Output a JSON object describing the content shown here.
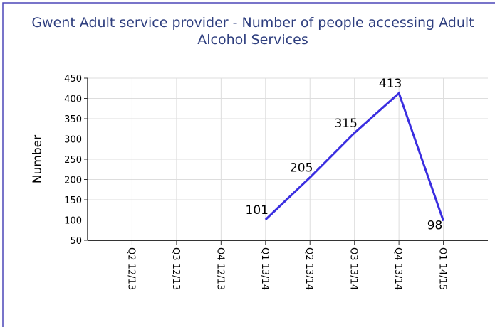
{
  "chart_data": {
    "type": "line",
    "title": "Gwent Adult service provider - Number of people accessing Adult Alcohol Services",
    "y_label": "Number",
    "categories": [
      "Q2 12/13",
      "Q3 12/13",
      "Q4 12/13",
      "Q1 13/14",
      "Q2 13/14",
      "Q3 13/14",
      "Q4 13/14",
      "Q1 14/15"
    ],
    "series": [
      {
        "name": "Number",
        "color": "#3a2ee0",
        "values": [
          null,
          null,
          null,
          101,
          205,
          315,
          413,
          98
        ]
      }
    ],
    "ylim": [
      50,
      450
    ],
    "yticks": [
      50,
      100,
      150,
      200,
      250,
      300,
      350,
      400,
      450
    ],
    "grid": true
  }
}
